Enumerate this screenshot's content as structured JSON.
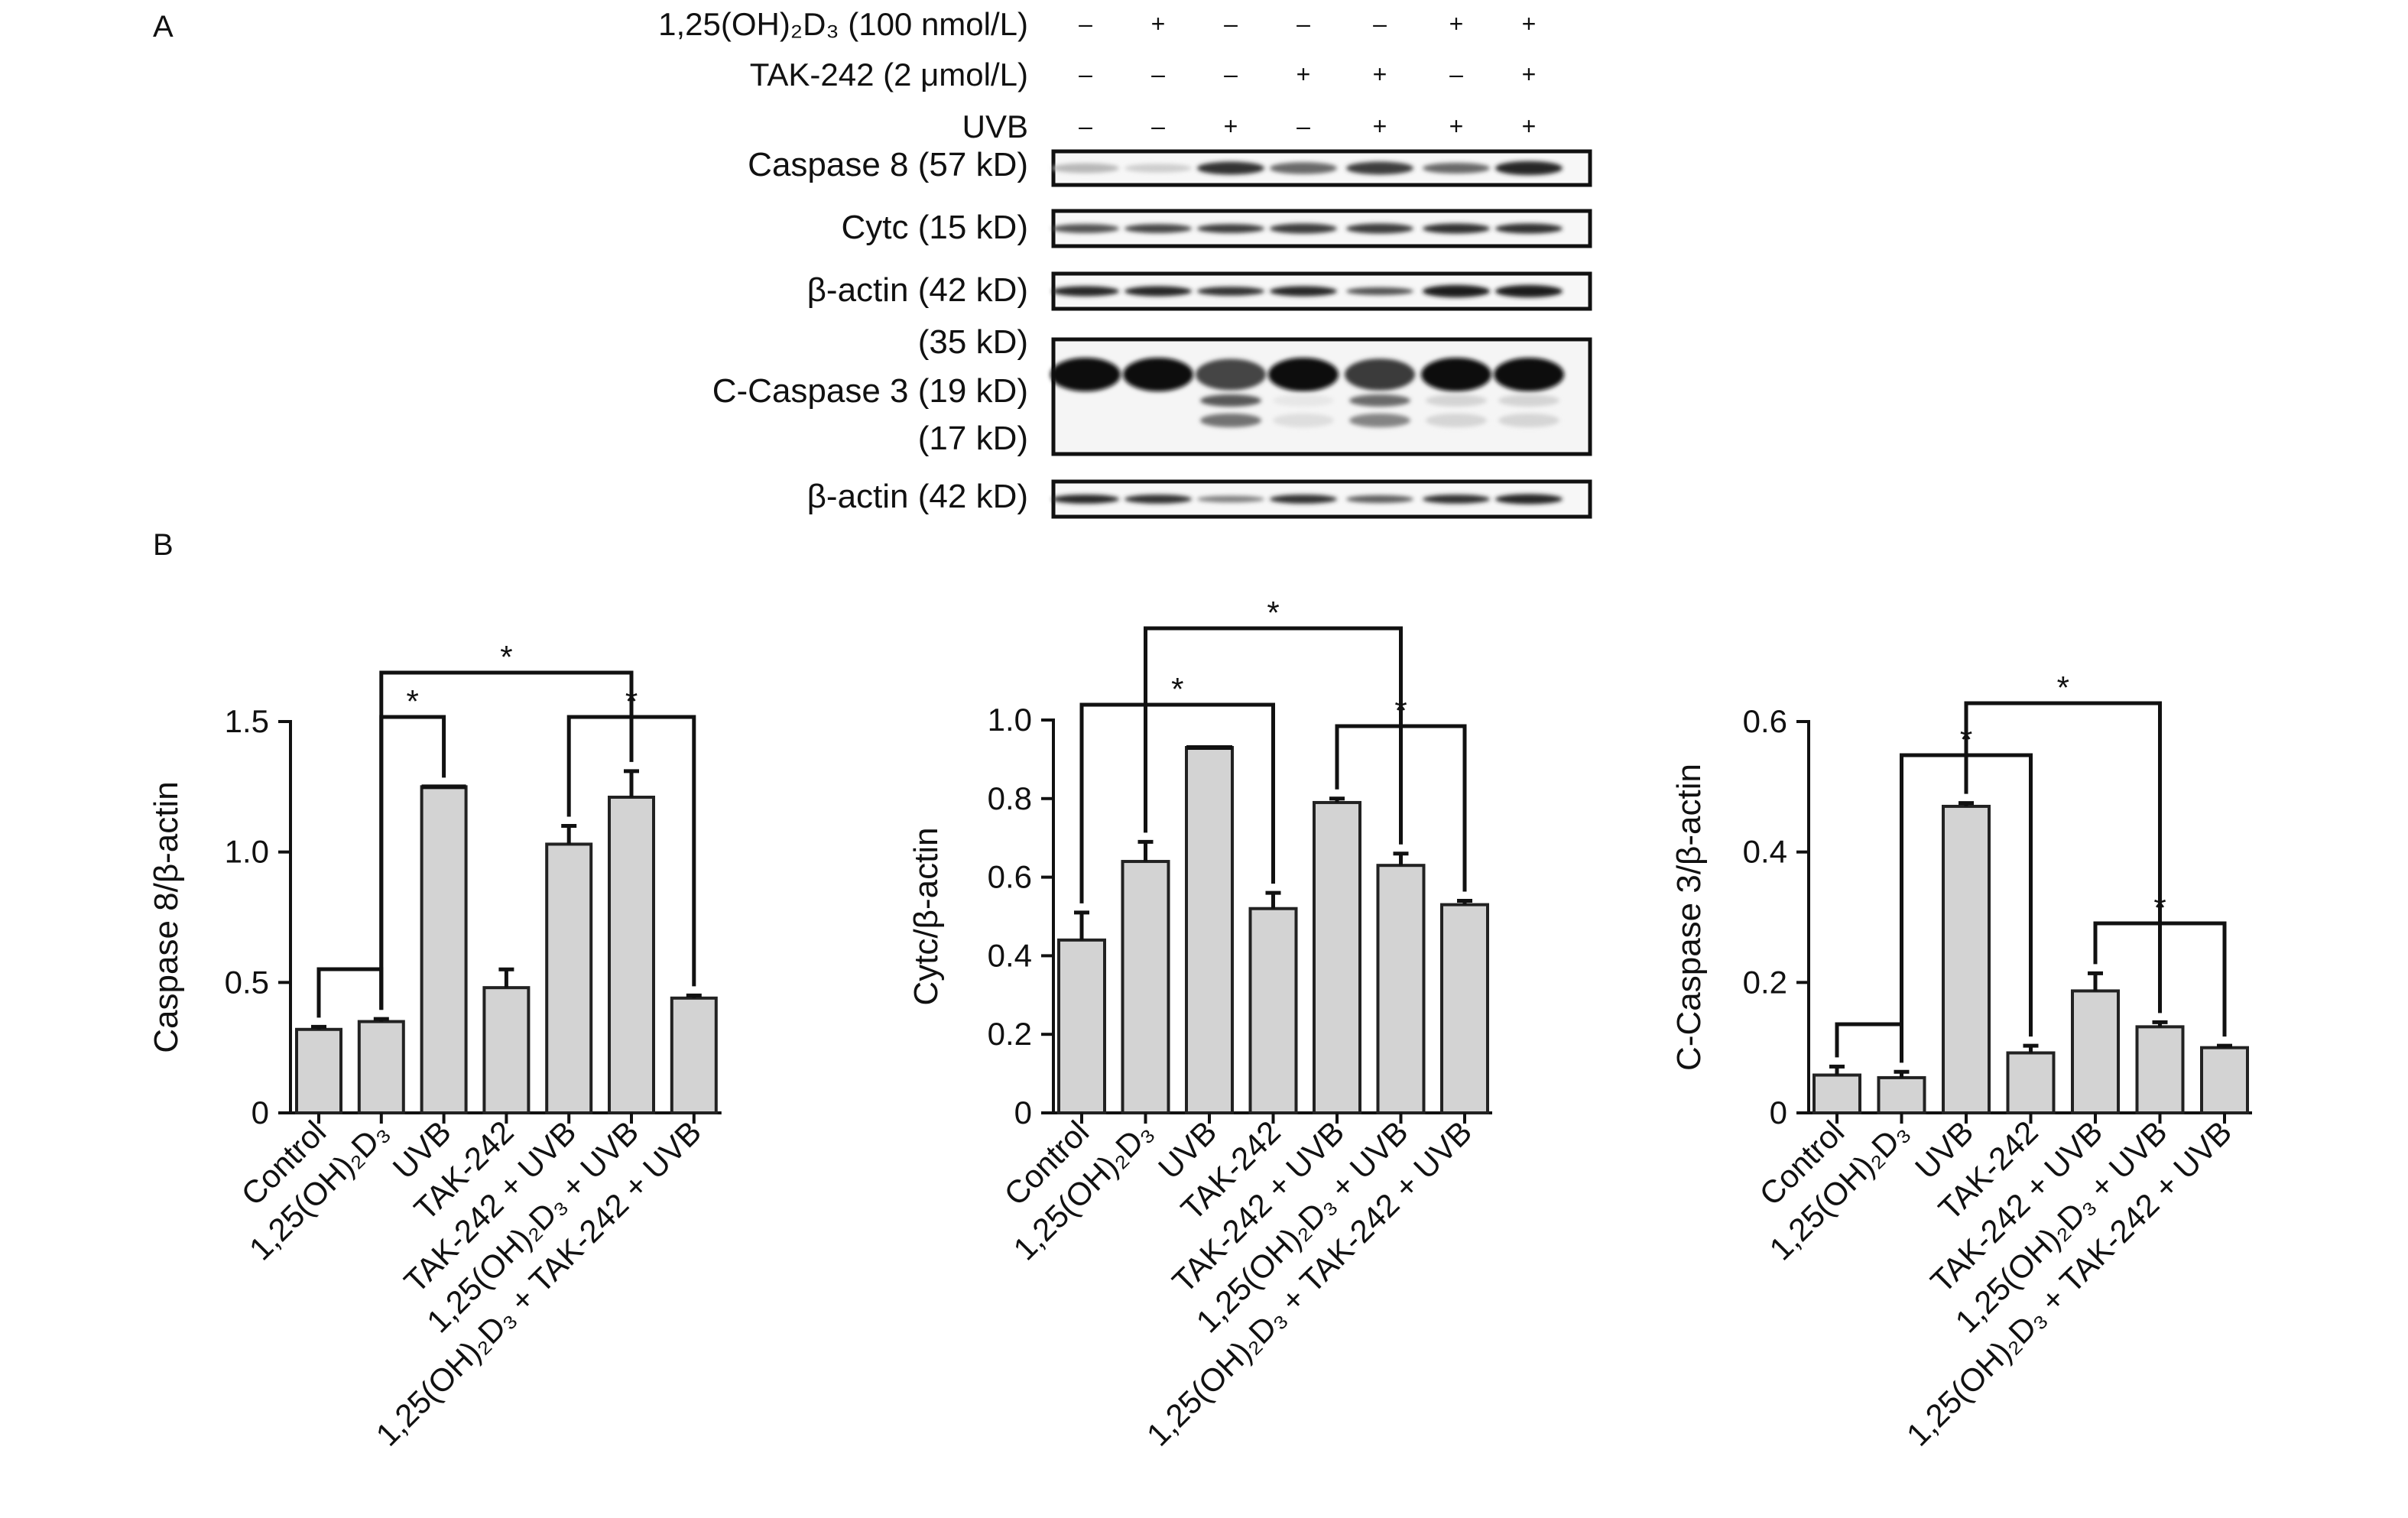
{
  "panel_a": {
    "letter": "A",
    "conditions": [
      {
        "label": "1,25(OH)₂D₃ (100 nmol/L)",
        "signs": [
          "–",
          "+",
          "–",
          "–",
          "–",
          "+",
          "+"
        ]
      },
      {
        "label": "TAK-242 (2 μmol/L)",
        "signs": [
          "–",
          "–",
          "–",
          "+",
          "+",
          "–",
          "+"
        ]
      },
      {
        "label": "UVB",
        "signs": [
          "–",
          "–",
          "+",
          "–",
          "+",
          "+",
          "+"
        ]
      }
    ],
    "blots": [
      {
        "label": "Caspase 8  (57 kD)",
        "intensity": [
          0.25,
          0.15,
          0.85,
          0.6,
          0.8,
          0.6,
          0.9
        ],
        "thickness": [
          0.45,
          0.4,
          0.6,
          0.55,
          0.6,
          0.5,
          0.65
        ]
      },
      {
        "label": "Cytc (15 kD)",
        "intensity": [
          0.7,
          0.75,
          0.8,
          0.8,
          0.8,
          0.85,
          0.85
        ],
        "thickness": [
          0.4,
          0.4,
          0.4,
          0.45,
          0.45,
          0.45,
          0.45
        ]
      },
      {
        "label": "β-actin (42 kD)",
        "intensity": [
          0.9,
          0.9,
          0.85,
          0.9,
          0.7,
          0.95,
          0.95
        ],
        "thickness": [
          0.45,
          0.45,
          0.4,
          0.45,
          0.35,
          0.55,
          0.55
        ]
      },
      {
        "label": "β-actin (42 kD)",
        "intensity": [
          0.9,
          0.85,
          0.5,
          0.85,
          0.65,
          0.85,
          0.9
        ],
        "thickness": [
          0.4,
          0.4,
          0.3,
          0.4,
          0.35,
          0.4,
          0.45
        ]
      }
    ],
    "ccasp3_blot": {
      "labels": [
        "(35 kD)",
        "C-Caspase 3 (19 kD)",
        "(17 kD)"
      ],
      "band35": [
        1.0,
        1.0,
        0.75,
        1.0,
        0.8,
        1.0,
        1.0
      ],
      "band19": [
        0.0,
        0.0,
        0.8,
        0.05,
        0.7,
        0.15,
        0.15
      ],
      "band17": [
        0.0,
        0.0,
        0.7,
        0.1,
        0.6,
        0.15,
        0.15
      ]
    }
  },
  "panel_b": {
    "letter": "B"
  },
  "chart_data": [
    {
      "type": "bar",
      "categories": [
        "Control",
        "1,25(OH)₂D₃",
        "UVB",
        "TAK-242",
        "TAK-242 + UVB",
        "1,25(OH)₂D₃ + UVB",
        "1,25(OH)₂D₃ + TAK-242 + UVB"
      ],
      "values": [
        0.32,
        0.35,
        1.25,
        0.48,
        1.03,
        1.21,
        0.44
      ],
      "errors": [
        0.01,
        0.01,
        0.0,
        0.07,
        0.07,
        0.1,
        0.01
      ],
      "ylabel": "Caspase 8/β-actin",
      "ylim": [
        0,
        1.5
      ],
      "yticks": [
        0,
        0.5,
        1.0,
        1.5
      ],
      "ytick_labels": [
        "0",
        "0.5",
        "1.0",
        "1.5"
      ],
      "significance": [
        {
          "from": 0,
          "to": 1,
          "label": ""
        },
        {
          "from": 1,
          "to": 2,
          "label": "*"
        },
        {
          "from": 1,
          "to": 5,
          "label": "*"
        },
        {
          "from": 4,
          "to": 6,
          "label": "*"
        }
      ]
    },
    {
      "type": "bar",
      "categories": [
        "Control",
        "1,25(OH)₂D₃",
        "UVB",
        "TAK-242",
        "TAK-242 + UVB",
        "1,25(OH)₂D₃ + UVB",
        "1,25(OH)₂D₃ + TAK-242 + UVB"
      ],
      "values": [
        0.44,
        0.64,
        0.93,
        0.52,
        0.79,
        0.63,
        0.53
      ],
      "errors": [
        0.07,
        0.05,
        0.0,
        0.04,
        0.01,
        0.03,
        0.01
      ],
      "ylabel": "Cytc/β-actin",
      "ylim": [
        0,
        1.0
      ],
      "yticks": [
        0,
        0.2,
        0.4,
        0.6,
        0.8,
        1.0
      ],
      "ytick_labels": [
        "0",
        "0.2",
        "0.4",
        "0.6",
        "0.8",
        "1.0"
      ],
      "significance": [
        {
          "from": 0,
          "to": 3,
          "label": "*"
        },
        {
          "from": 1,
          "to": 5,
          "label": "*"
        },
        {
          "from": 4,
          "to": 6,
          "label": "*"
        }
      ]
    },
    {
      "type": "bar",
      "categories": [
        "Control",
        "1,25(OH)₂D₃",
        "UVB",
        "TAK-242",
        "TAK-242 + UVB",
        "1,25(OH)₂D₃ + UVB",
        "1,25(OH)₂D₃ + TAK-242 + UVB"
      ],
      "values": [
        0.058,
        0.054,
        0.47,
        0.092,
        0.187,
        0.132,
        0.1
      ],
      "errors": [
        0.013,
        0.009,
        0.005,
        0.011,
        0.027,
        0.007,
        0.003
      ],
      "ylabel": "C-Caspase 3/β-actin",
      "ylim": [
        0,
        0.6
      ],
      "yticks": [
        0,
        0.2,
        0.4,
        0.6
      ],
      "ytick_labels": [
        "0",
        "0.2",
        "0.4",
        "0.6"
      ],
      "significance": [
        {
          "from": 0,
          "to": 1,
          "label": ""
        },
        {
          "from": 1,
          "to": 3,
          "label": "*"
        },
        {
          "from": 2,
          "to": 5,
          "label": "*"
        },
        {
          "from": 4,
          "to": 6,
          "label": "*"
        }
      ]
    }
  ]
}
